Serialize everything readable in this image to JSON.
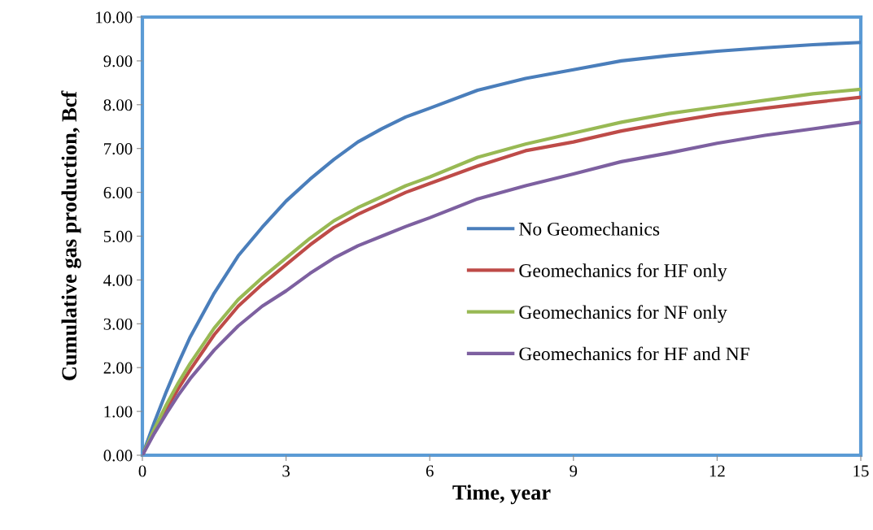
{
  "chart_data": {
    "type": "line",
    "xlabel": "Time, year",
    "ylabel": "Cumulative gas production, Bcf",
    "x": [
      0,
      0.25,
      0.5,
      0.75,
      1,
      1.5,
      2,
      2.5,
      3,
      3.5,
      4,
      4.5,
      5,
      5.5,
      6,
      7,
      8,
      9,
      10,
      11,
      12,
      13,
      14,
      15
    ],
    "series": [
      {
        "name": "No Geomechanics",
        "color": "#4a7ebb",
        "values": [
          0,
          0.75,
          1.45,
          2.1,
          2.7,
          3.7,
          4.55,
          5.2,
          5.8,
          6.3,
          6.75,
          7.15,
          7.45,
          7.72,
          7.92,
          8.33,
          8.6,
          8.8,
          9.0,
          9.12,
          9.22,
          9.3,
          9.37,
          9.42
        ]
      },
      {
        "name": "Geomechanics for HF only",
        "color": "#be4b48",
        "values": [
          0,
          0.55,
          1.05,
          1.52,
          1.95,
          2.75,
          3.4,
          3.9,
          4.35,
          4.8,
          5.2,
          5.5,
          5.75,
          6.0,
          6.2,
          6.6,
          6.95,
          7.15,
          7.4,
          7.6,
          7.78,
          7.92,
          8.05,
          8.17
        ]
      },
      {
        "name": "Geomechanics for NF only",
        "color": "#98b954",
        "values": [
          0,
          0.6,
          1.15,
          1.65,
          2.1,
          2.9,
          3.55,
          4.05,
          4.5,
          4.95,
          5.35,
          5.65,
          5.9,
          6.15,
          6.35,
          6.8,
          7.1,
          7.35,
          7.6,
          7.8,
          7.95,
          8.1,
          8.25,
          8.35
        ]
      },
      {
        "name": "Geomechanics for HF and NF",
        "color": "#7d60a0",
        "values": [
          0,
          0.5,
          0.95,
          1.37,
          1.75,
          2.4,
          2.95,
          3.4,
          3.75,
          4.15,
          4.5,
          4.78,
          5.0,
          5.22,
          5.42,
          5.85,
          6.15,
          6.42,
          6.7,
          6.9,
          7.12,
          7.3,
          7.45,
          7.6
        ]
      }
    ],
    "xlim": [
      0,
      15
    ],
    "xticks": [
      0,
      3,
      6,
      9,
      12,
      15
    ],
    "ylim": [
      0,
      10
    ],
    "yticks": [
      {
        "value": 0,
        "label": "0.00"
      },
      {
        "value": 1,
        "label": "1.00"
      },
      {
        "value": 2,
        "label": "2.00"
      },
      {
        "value": 3,
        "label": "3.00"
      },
      {
        "value": 4,
        "label": "4.00"
      },
      {
        "value": 5,
        "label": "5.00"
      },
      {
        "value": 6,
        "label": "6.00"
      },
      {
        "value": 7,
        "label": "7.00"
      },
      {
        "value": 8,
        "label": "8.00"
      },
      {
        "value": 9,
        "label": "9.00"
      },
      {
        "value": 10,
        "label": "10.00"
      }
    ],
    "grid": false,
    "legend": "center right",
    "marker": "none",
    "line_style": "solid"
  }
}
